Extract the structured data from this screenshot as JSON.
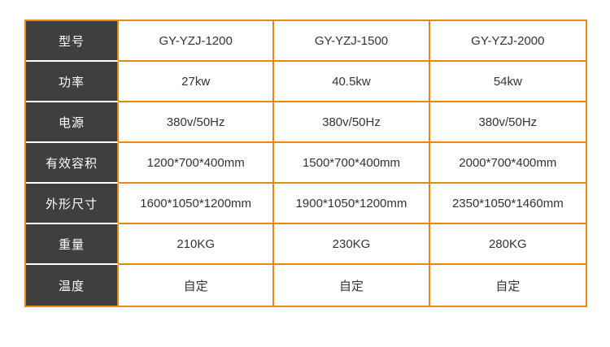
{
  "colors": {
    "accent_orange": "#e8870e",
    "header_dark": "#3f3f3f",
    "cell_text": "#333333",
    "header_text": "#ffffff",
    "background": "#ffffff"
  },
  "table": {
    "rows": [
      {
        "label": "型号",
        "values": [
          "GY-YZJ-1200",
          "GY-YZJ-1500",
          "GY-YZJ-2000"
        ]
      },
      {
        "label": "功率",
        "values": [
          "27kw",
          "40.5kw",
          "54kw"
        ]
      },
      {
        "label": "电源",
        "values": [
          "380v/50Hz",
          "380v/50Hz",
          "380v/50Hz"
        ]
      },
      {
        "label": "有效容积",
        "values": [
          "1200*700*400mm",
          "1500*700*400mm",
          "2000*700*400mm"
        ]
      },
      {
        "label": "外形尺寸",
        "values": [
          "1600*1050*1200mm",
          "1900*1050*1200mm",
          "2350*1050*1460mm"
        ]
      },
      {
        "label": "重量",
        "values": [
          "210KG",
          "230KG",
          "280KG"
        ]
      },
      {
        "label": "温度",
        "values": [
          "自定",
          "自定",
          "自定"
        ]
      }
    ]
  }
}
